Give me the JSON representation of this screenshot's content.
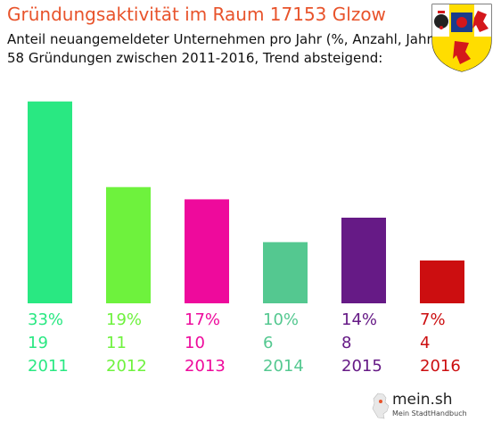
{
  "chart_data": {
    "type": "bar",
    "title": "Gründungsaktivität im Raum 17153 Glzow",
    "subtitle": "Anteil neuangemeldeter Unternehmen pro Jahr (%, Anzahl, Jahr)",
    "subtitle2": "58 Gründungen zwischen 2011-2016, Trend absteigend:",
    "categories": [
      "2011",
      "2012",
      "2013",
      "2014",
      "2015",
      "2016"
    ],
    "values": [
      33,
      19,
      17,
      10,
      14,
      7
    ],
    "percent_labels": [
      "33%",
      "19%",
      "17%",
      "10%",
      "14%",
      "7%"
    ],
    "counts": [
      "19",
      "11",
      "10",
      "6",
      "8",
      "4"
    ],
    "colors": [
      "#29e882",
      "#6ef23d",
      "#ee0a9c",
      "#54c890",
      "#661a86",
      "#cc0e10"
    ],
    "ylim": [
      0,
      35
    ],
    "grid": false,
    "legend": "none"
  },
  "logo": {
    "text": "mein.sh",
    "sub": "Mein StadtHandbuch"
  },
  "crest": {
    "icon": "coat-of-arms-icon",
    "colors": [
      "#1a3c8c",
      "#ffdd00",
      "#ffffff",
      "#d4171b"
    ]
  }
}
